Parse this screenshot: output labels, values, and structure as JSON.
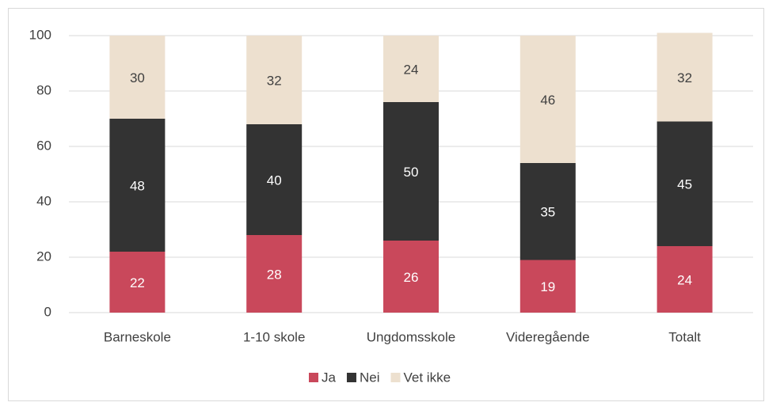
{
  "chart_data": {
    "type": "stacked_bar",
    "categories": [
      "Barneskole",
      "1-10 skole",
      "Ungdomsskole",
      "Videregående",
      "Totalt"
    ],
    "series": [
      {
        "name": "Ja",
        "color": "#c9485b",
        "values": [
          22,
          28,
          26,
          19,
          24
        ]
      },
      {
        "name": "Nei",
        "color": "#333333",
        "values": [
          48,
          40,
          50,
          35,
          45
        ]
      },
      {
        "name": "Vet ikke",
        "color": "#ede0cf",
        "values": [
          30,
          32,
          24,
          46,
          32
        ]
      }
    ],
    "ylim": [
      0,
      100
    ],
    "yticks": [
      0,
      20,
      40,
      60,
      80,
      100
    ],
    "grid": true,
    "legend": "bottom"
  }
}
